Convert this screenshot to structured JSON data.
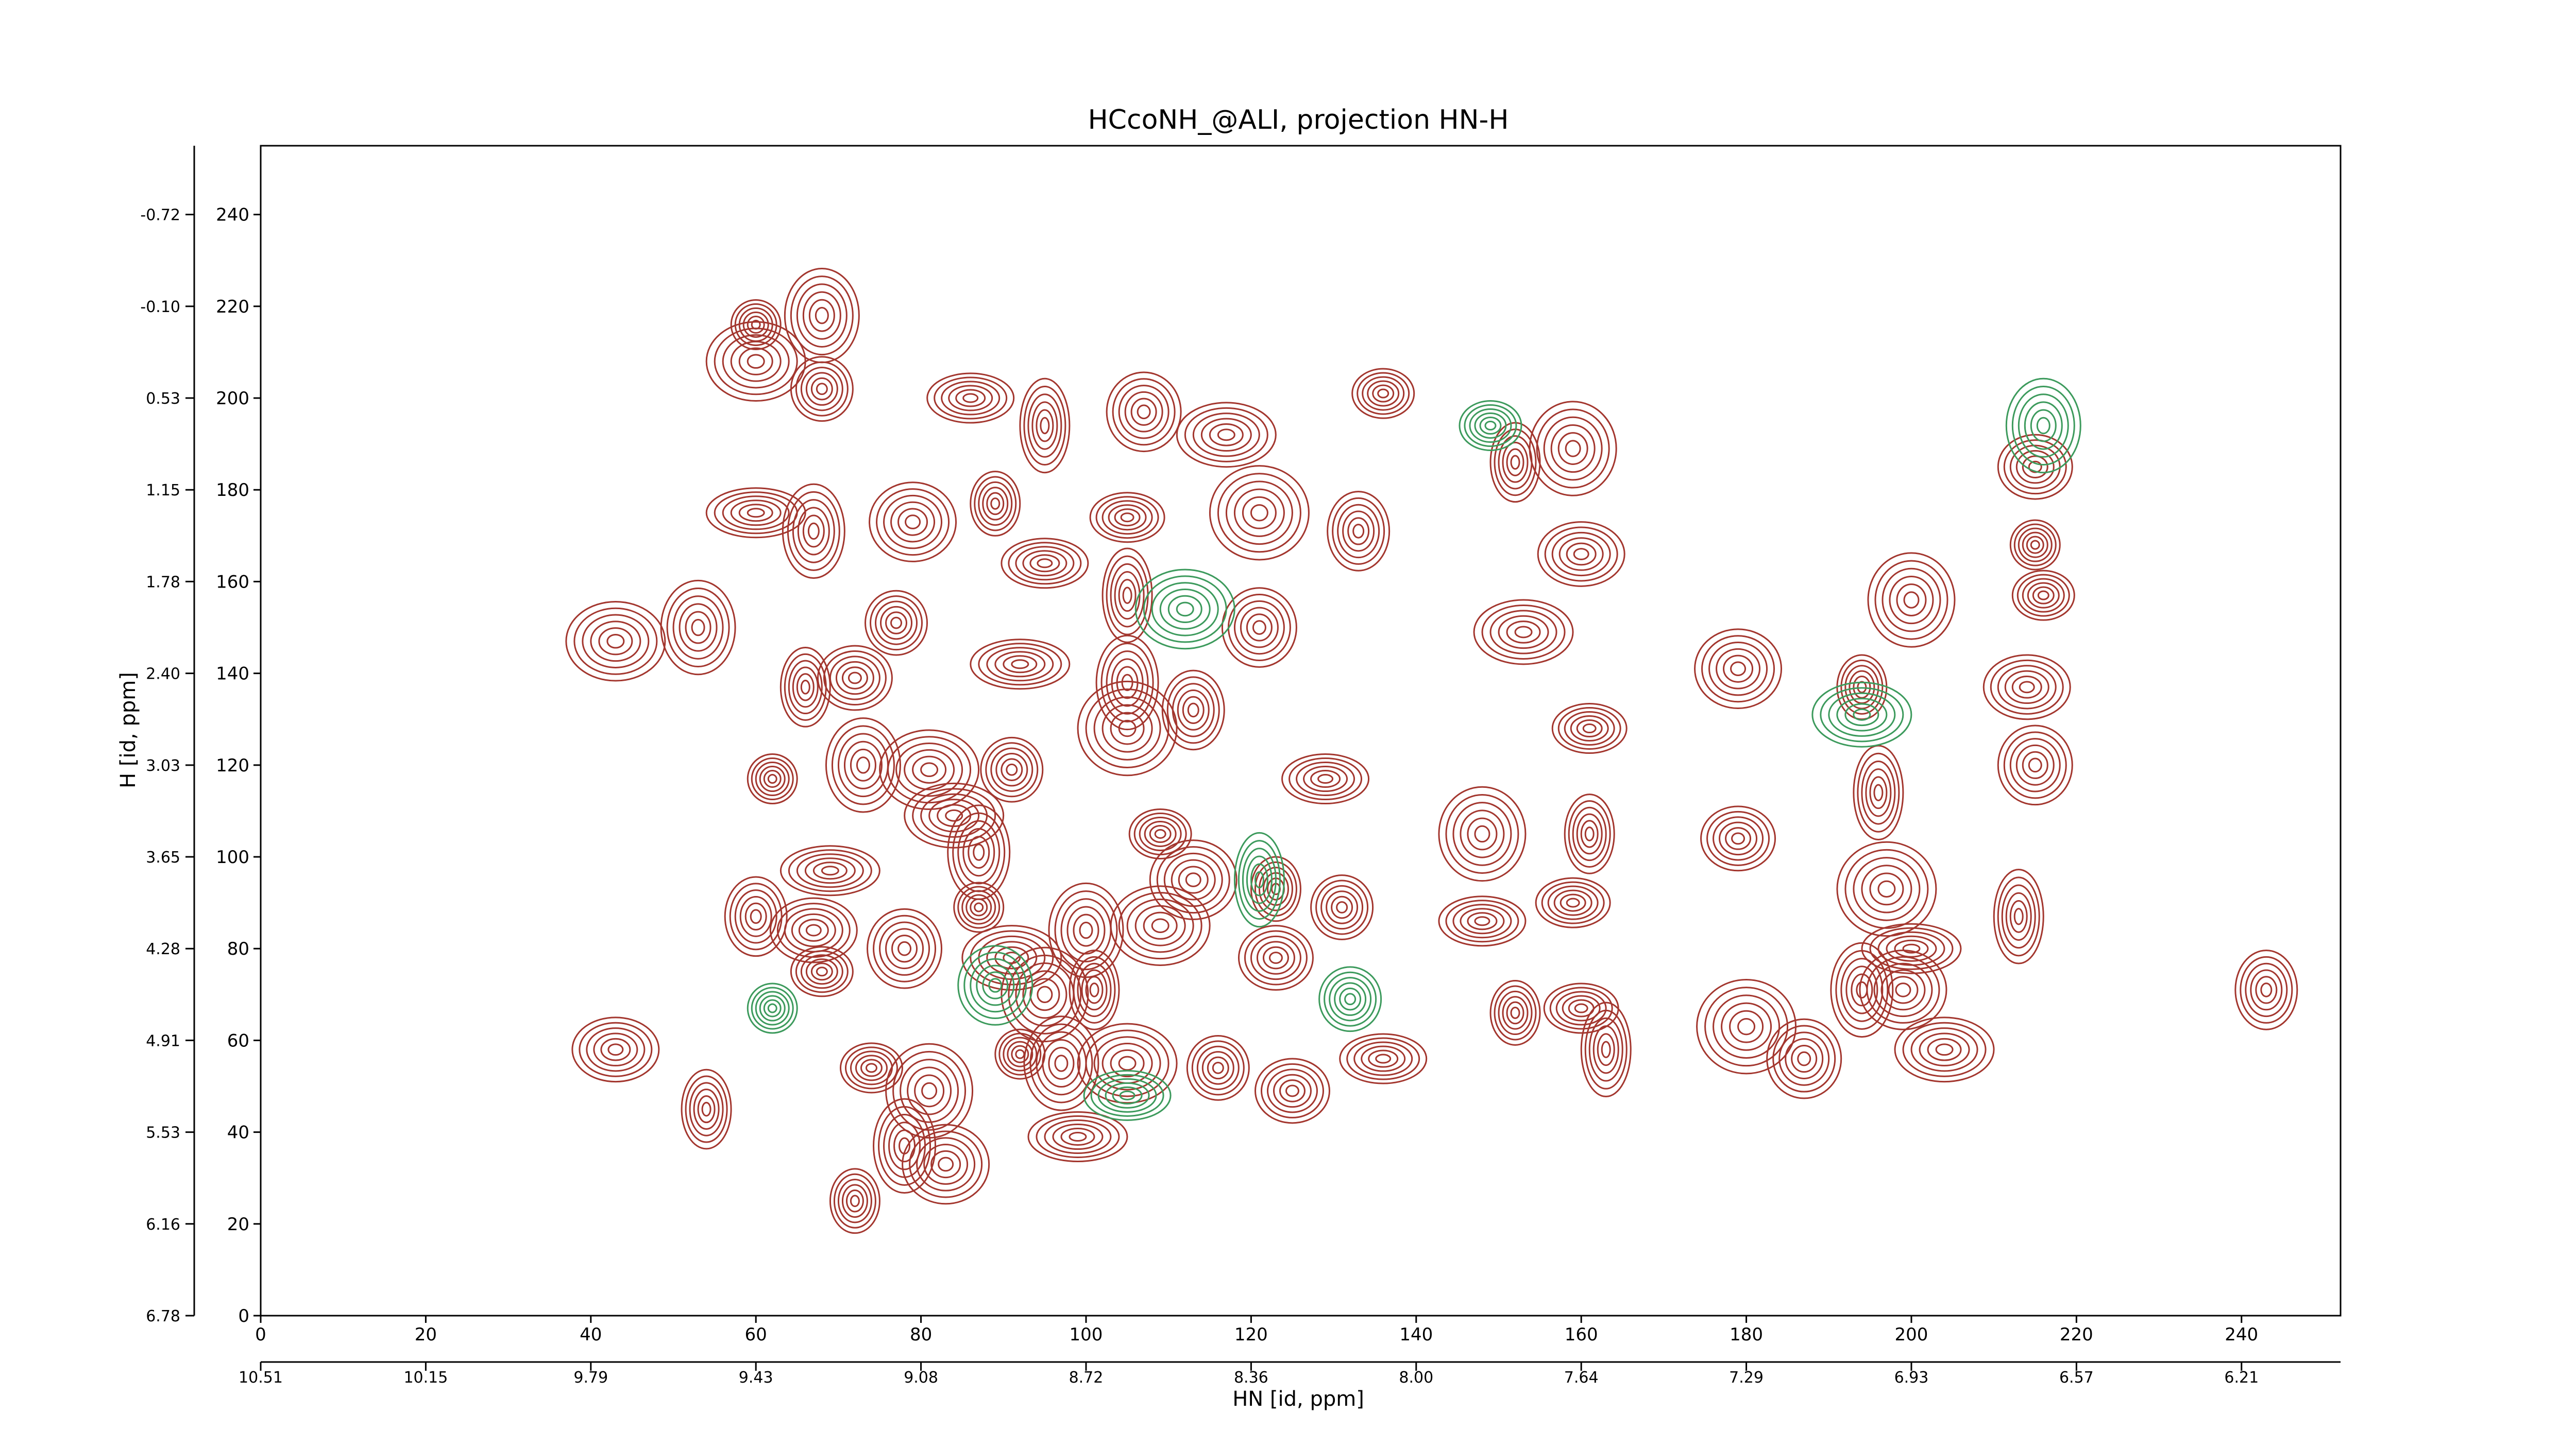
{
  "chart_data": {
    "type": "contour",
    "title": "HCcoNH_@ALI, projection HN-H",
    "xlabel": "HN [id, ppm]",
    "ylabel": "H [id, ppm]",
    "xlim": [
      0,
      252
    ],
    "ylim": [
      0,
      255
    ],
    "xticks": [
      0,
      20,
      40,
      60,
      80,
      100,
      120,
      140,
      160,
      180,
      200,
      220,
      240
    ],
    "yticks": [
      0,
      20,
      40,
      60,
      80,
      100,
      120,
      140,
      160,
      180,
      200,
      220,
      240
    ],
    "x_ppm_ticks": [
      {
        "value": 0,
        "label": "10.51"
      },
      {
        "value": 20,
        "label": "10.15"
      },
      {
        "value": 40,
        "label": "9.79"
      },
      {
        "value": 60,
        "label": "9.43"
      },
      {
        "value": 80,
        "label": "9.08"
      },
      {
        "value": 100,
        "label": "8.72"
      },
      {
        "value": 120,
        "label": "8.36"
      },
      {
        "value": 140,
        "label": "8.00"
      },
      {
        "value": 160,
        "label": "7.64"
      },
      {
        "value": 180,
        "label": "7.29"
      },
      {
        "value": 200,
        "label": "6.93"
      },
      {
        "value": 220,
        "label": "6.57"
      },
      {
        "value": 240,
        "label": "6.21"
      }
    ],
    "y_ppm_ticks": [
      {
        "value": 0,
        "label": "6.78"
      },
      {
        "value": 20,
        "label": "6.16"
      },
      {
        "value": 40,
        "label": "5.53"
      },
      {
        "value": 60,
        "label": "4.91"
      },
      {
        "value": 80,
        "label": "4.28"
      },
      {
        "value": 100,
        "label": "3.65"
      },
      {
        "value": 120,
        "label": "3.03"
      },
      {
        "value": 140,
        "label": "2.40"
      },
      {
        "value": 160,
        "label": "1.78"
      },
      {
        "value": 180,
        "label": "1.15"
      },
      {
        "value": 200,
        "label": "0.53"
      },
      {
        "value": 220,
        "label": "-0.10"
      },
      {
        "value": 240,
        "label": "-0.72"
      }
    ],
    "series": [
      {
        "color": "#a3362e",
        "x": [
          60,
          68,
          60,
          68,
          86,
          95,
          107,
          117,
          136,
          159,
          152,
          215,
          60,
          67,
          79,
          89,
          105,
          121,
          133,
          160,
          215,
          53,
          43,
          77,
          95,
          105,
          121,
          153,
          216,
          200,
          66,
          72,
          92,
          105,
          179,
          194,
          161,
          105,
          113,
          214,
          62,
          73,
          81,
          91,
          129,
          196,
          215,
          84,
          109,
          148,
          161,
          179,
          69,
          87,
          113,
          123,
          159,
          197,
          60,
          67,
          87,
          100,
          109,
          131,
          148,
          213,
          78,
          91,
          68,
          95,
          101,
          123,
          200,
          194,
          199,
          152,
          160,
          180,
          243,
          43,
          92,
          97,
          105,
          116,
          136,
          163,
          187,
          204,
          74,
          81,
          54,
          125,
          99,
          78,
          83,
          72
        ],
        "y": [
          216,
          218,
          208,
          202,
          200,
          194,
          197,
          192,
          201,
          189,
          186,
          185,
          175,
          171,
          173,
          177,
          174,
          175,
          171,
          166,
          168,
          150,
          147,
          151,
          164,
          157,
          150,
          149,
          157,
          156,
          137,
          139,
          142,
          138,
          141,
          137,
          128,
          128,
          132,
          137,
          117,
          120,
          119,
          119,
          117,
          114,
          120,
          109,
          105,
          105,
          105,
          104,
          97,
          101,
          95,
          93,
          90,
          93,
          87,
          84,
          89,
          84,
          85,
          89,
          86,
          87,
          80,
          78,
          75,
          70,
          71,
          78,
          80,
          71,
          71,
          66,
          67,
          63,
          71,
          58,
          57,
          55,
          55,
          54,
          56,
          58,
          56,
          58,
          54,
          49,
          45,
          49,
          39,
          37,
          33,
          25
        ]
      },
      {
        "color": "#3c9a5c",
        "x": [
          62,
          216,
          112,
          132,
          105,
          121,
          89,
          194,
          149
        ],
        "y": [
          67,
          194,
          154,
          69,
          48,
          95,
          72,
          131,
          194
        ]
      }
    ]
  }
}
